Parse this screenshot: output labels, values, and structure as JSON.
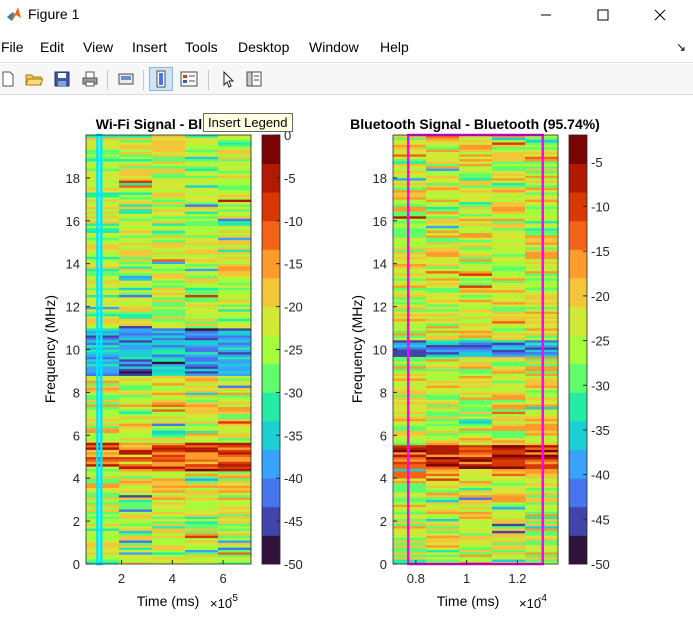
{
  "window": {
    "title": "Figure 1",
    "minimize_icon": "minimize-icon",
    "maximize_icon": "maximize-icon",
    "close_icon": "close-icon"
  },
  "menu": [
    "File",
    "Edit",
    "View",
    "Insert",
    "Tools",
    "Desktop",
    "Window",
    "Help"
  ],
  "toolbar": {
    "icons": [
      "new-figure-icon",
      "open-file-icon",
      "save-icon",
      "print-icon",
      "link-plot-icon",
      "insert-colorbar-icon",
      "insert-legend-icon",
      "select-arrow-icon",
      "property-inspector-icon"
    ],
    "active": [
      "insert-colorbar-icon"
    ],
    "tooltip": "Insert Legend"
  },
  "colormap": [
    "#30123b",
    "#4145ab",
    "#4675ed",
    "#39a2fc",
    "#1bcfd4",
    "#24eca6",
    "#61fc6c",
    "#a4fc3b",
    "#d1e834",
    "#f3c63a",
    "#fe9b2d",
    "#f36315",
    "#d93806",
    "#b11901",
    "#7a0402"
  ],
  "chart_data": [
    {
      "type": "heatmap",
      "title": "Wi-Fi Signal - Bluetoo",
      "xlabel": "Time (ms)",
      "x_multiplier": "×10",
      "x_exponent": "-5",
      "ylabel": "Frequency (MHz)",
      "xlim": [
        0.6,
        7.1
      ],
      "ylim": [
        0,
        20
      ],
      "xticks": [
        "2",
        "4",
        "6"
      ],
      "xtick_values": [
        2,
        4,
        6
      ],
      "yticks": [
        "0",
        "2",
        "4",
        "6",
        "8",
        "10",
        "12",
        "14",
        "16",
        "18"
      ],
      "ytick_values": [
        0,
        2,
        4,
        6,
        8,
        10,
        12,
        14,
        16,
        18
      ],
      "columns": 5,
      "clim": [
        -50,
        0
      ],
      "colorbar_ticks": [
        "0",
        "-5",
        "-10",
        "-15",
        "-20",
        "-25",
        "-30",
        "-35",
        "-40",
        "-45",
        "-50"
      ],
      "colorbar_values": [
        0,
        -5,
        -10,
        -15,
        -20,
        -25,
        -30,
        -35,
        -40,
        -45,
        -50
      ],
      "profile": [
        {
          "from": 0,
          "to": 3.0,
          "level": -24
        },
        {
          "from": 3.0,
          "to": 4.3,
          "level": -22
        },
        {
          "from": 4.3,
          "to": 5.7,
          "level": -11
        },
        {
          "from": 5.7,
          "to": 8.8,
          "level": -22
        },
        {
          "from": 8.8,
          "to": 11.0,
          "level": -38
        },
        {
          "from": 11.0,
          "to": 20,
          "level": -24
        }
      ],
      "highlight": {
        "color": "#00e5ff",
        "x0": 1.05,
        "x1": 1.2,
        "y0": 0,
        "y1": 20
      }
    },
    {
      "type": "heatmap",
      "title": "Bluetooth Signal - Bluetooth (95.74%)",
      "xlabel": "Time (ms)",
      "x_multiplier": "×10",
      "x_exponent": "-4",
      "ylabel": "Frequency (MHz)",
      "xlim": [
        0.71,
        1.36
      ],
      "ylim": [
        0,
        20
      ],
      "xticks": [
        "0.8",
        "1",
        "1.2"
      ],
      "xtick_values": [
        0.8,
        1.0,
        1.2
      ],
      "yticks": [
        "0",
        "2",
        "4",
        "6",
        "8",
        "10",
        "12",
        "14",
        "16",
        "18"
      ],
      "ytick_values": [
        0,
        2,
        4,
        6,
        8,
        10,
        12,
        14,
        16,
        18
      ],
      "columns": 5,
      "clim": [
        -50,
        -2
      ],
      "colorbar_ticks": [
        "-5",
        "-10",
        "-15",
        "-20",
        "-25",
        "-30",
        "-35",
        "-40",
        "-45",
        "-50"
      ],
      "colorbar_values": [
        -5,
        -10,
        -15,
        -20,
        -25,
        -30,
        -35,
        -40,
        -45,
        -50
      ],
      "profile": [
        {
          "from": 0,
          "to": 3.8,
          "level": -24
        },
        {
          "from": 3.8,
          "to": 4.4,
          "level": -20
        },
        {
          "from": 4.4,
          "to": 5.6,
          "level": -9
        },
        {
          "from": 5.6,
          "to": 9.7,
          "level": -23
        },
        {
          "from": 9.7,
          "to": 10.5,
          "level": -40
        },
        {
          "from": 10.5,
          "to": 20,
          "level": -23
        }
      ],
      "highlight": {
        "color": "#ff00ff",
        "x0": 0.77,
        "x1": 1.3,
        "y0": 0,
        "y1": 20
      }
    }
  ]
}
